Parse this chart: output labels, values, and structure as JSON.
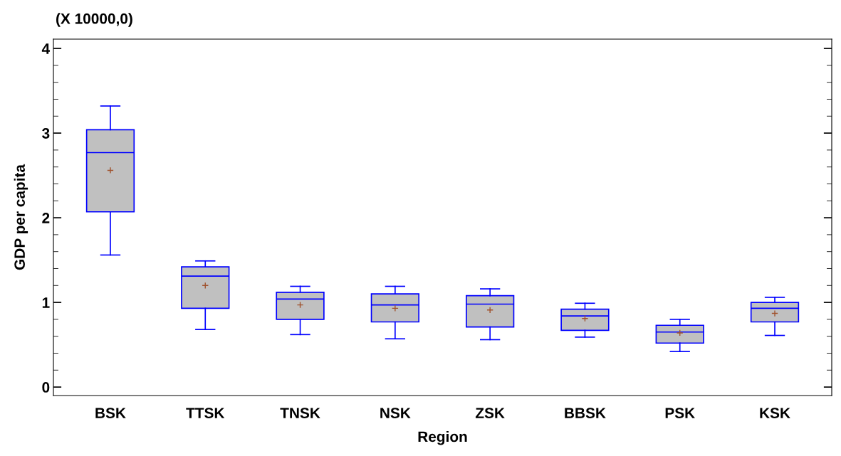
{
  "chart_data": {
    "type": "box",
    "xlabel": "Region",
    "ylabel": "GDP per capita",
    "annotations": [
      "(X 10000,0)"
    ],
    "categories": [
      "BSK",
      "TTSK",
      "TNSK",
      "NSK",
      "ZSK",
      "BBSK",
      "PSK",
      "KSK"
    ],
    "boxes": [
      {
        "low": 1.56,
        "q1": 2.07,
        "median": 2.77,
        "q3": 3.04,
        "high": 3.32,
        "mean": 2.56
      },
      {
        "low": 0.68,
        "q1": 0.93,
        "median": 1.31,
        "q3": 1.42,
        "high": 1.49,
        "mean": 1.2
      },
      {
        "low": 0.62,
        "q1": 0.8,
        "median": 1.04,
        "q3": 1.12,
        "high": 1.19,
        "mean": 0.97
      },
      {
        "low": 0.57,
        "q1": 0.77,
        "median": 0.97,
        "q3": 1.1,
        "high": 1.19,
        "mean": 0.93
      },
      {
        "low": 0.56,
        "q1": 0.71,
        "median": 0.98,
        "q3": 1.08,
        "high": 1.16,
        "mean": 0.91
      },
      {
        "low": 0.59,
        "q1": 0.67,
        "median": 0.84,
        "q3": 0.92,
        "high": 0.99,
        "mean": 0.81
      },
      {
        "low": 0.42,
        "q1": 0.52,
        "median": 0.65,
        "q3": 0.73,
        "high": 0.8,
        "mean": 0.64
      },
      {
        "low": 0.61,
        "q1": 0.77,
        "median": 0.93,
        "q3": 1.0,
        "high": 1.06,
        "mean": 0.87
      }
    ],
    "color": "#c0c0c0",
    "ylim": [
      -0.1,
      4.11
    ],
    "yticks": [
      0,
      1,
      2,
      3,
      4
    ],
    "grid": false,
    "legend": false
  }
}
